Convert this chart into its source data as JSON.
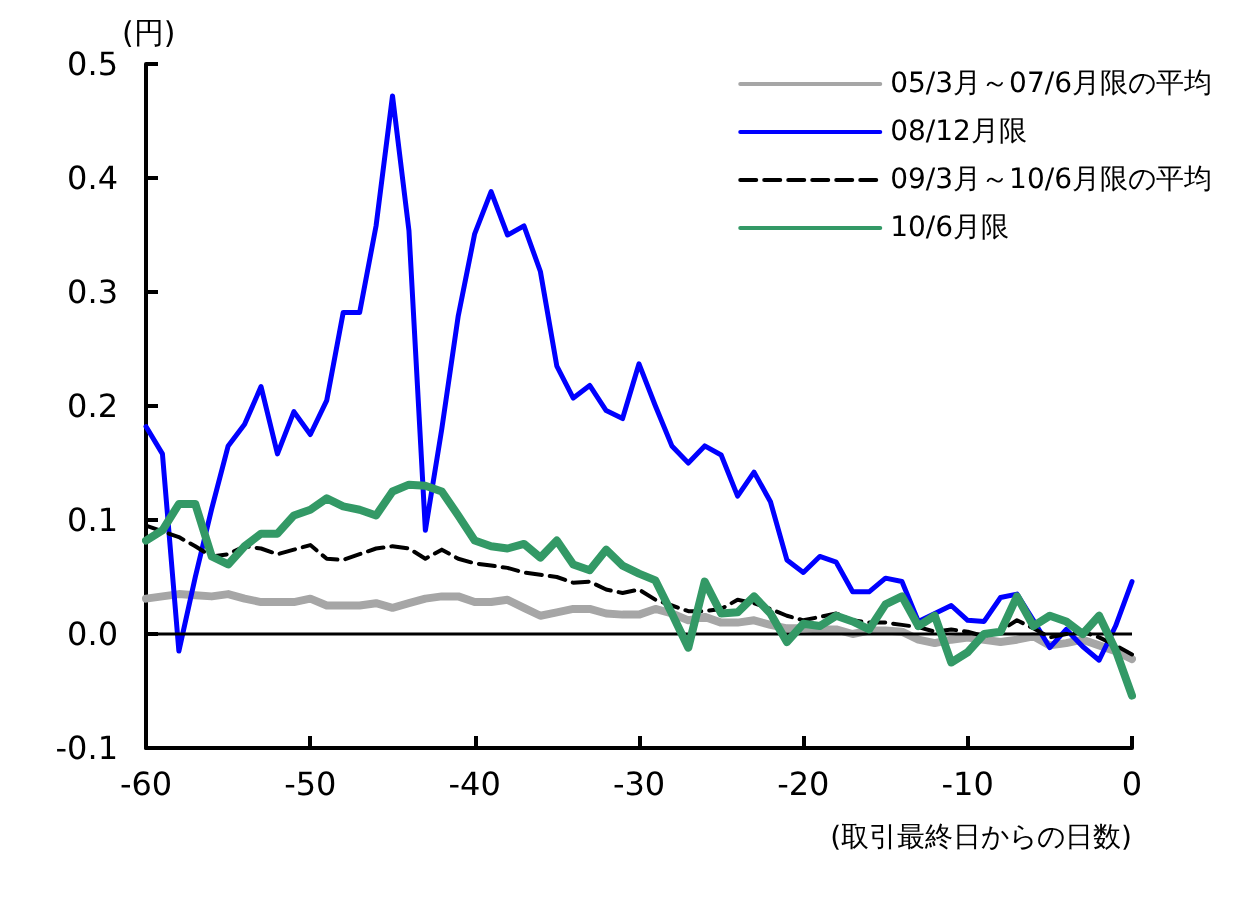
{
  "chart_data": {
    "type": "line",
    "ylabel": "(円)",
    "xlabel": "(取引最終日からの日数)",
    "x": [
      -60,
      -59,
      -58,
      -57,
      -56,
      -55,
      -54,
      -53,
      -52,
      -51,
      -50,
      -49,
      -48,
      -47,
      -46,
      -45,
      -44,
      -43,
      -42,
      -41,
      -40,
      -39,
      -38,
      -37,
      -36,
      -35,
      -34,
      -33,
      -32,
      -31,
      -30,
      -29,
      -28,
      -27,
      -26,
      -25,
      -24,
      -23,
      -22,
      -21,
      -20,
      -19,
      -18,
      -17,
      -16,
      -15,
      -14,
      -13,
      -12,
      -11,
      -10,
      -9,
      -8,
      -7,
      -6,
      -5,
      -4,
      -3,
      -2,
      -1,
      0
    ],
    "series": [
      {
        "name": "05/3月～07/6月限の平均",
        "color": "#a6a6a6",
        "line_style": "solid",
        "values": [
          0.031,
          0.033,
          0.035,
          0.034,
          0.033,
          0.035,
          0.031,
          0.028,
          0.028,
          0.028,
          0.031,
          0.025,
          0.025,
          0.025,
          0.027,
          0.023,
          0.027,
          0.031,
          0.033,
          0.033,
          0.028,
          0.028,
          0.03,
          0.023,
          0.016,
          0.019,
          0.022,
          0.022,
          0.018,
          0.017,
          0.017,
          0.022,
          0.018,
          0.012,
          0.015,
          0.01,
          0.01,
          0.012,
          0.008,
          0.005,
          0.005,
          0.004,
          0.004,
          0,
          0.003,
          0.003,
          0.002,
          -0.005,
          -0.008,
          -0.005,
          -0.003,
          -0.005,
          -0.007,
          -0.005,
          -0.002,
          -0.01,
          -0.008,
          -0.005,
          -0.01,
          -0.015,
          -0.022
        ]
      },
      {
        "name": "08/12月限",
        "color": "#0000ff",
        "line_style": "solid",
        "values": [
          0.182,
          0.158,
          -0.015,
          0.05,
          0.11,
          0.165,
          0.184,
          0.217,
          0.158,
          0.195,
          0.175,
          0.205,
          0.282,
          0.282,
          0.358,
          0.472,
          0.354,
          0.091,
          0.18,
          0.279,
          0.351,
          0.388,
          0.35,
          0.358,
          0.318,
          0.235,
          0.207,
          0.218,
          0.196,
          0.189,
          0.237,
          0.2,
          0.165,
          0.15,
          0.165,
          0.157,
          0.121,
          0.142,
          0.116,
          0.065,
          0.054,
          0.068,
          0.063,
          0.037,
          0.037,
          0.049,
          0.046,
          0.011,
          0.018,
          0.025,
          0.012,
          0.011,
          0.032,
          0.035,
          0.012,
          -0.012,
          0.004,
          -0.011,
          -0.023,
          0.007,
          0.046
        ]
      },
      {
        "name": "09/3月～10/6月限の平均",
        "color": "#000000",
        "line_style": "dashed",
        "values": [
          0.095,
          0.09,
          0.085,
          0.077,
          0.068,
          0.07,
          0.077,
          0.075,
          0.07,
          0.074,
          0.078,
          0.066,
          0.065,
          0.07,
          0.075,
          0.077,
          0.075,
          0.066,
          0.074,
          0.066,
          0.062,
          0.06,
          0.058,
          0.054,
          0.052,
          0.05,
          0.045,
          0.046,
          0.039,
          0.036,
          0.039,
          0.03,
          0.025,
          0.02,
          0.02,
          0.022,
          0.03,
          0.027,
          0.022,
          0.016,
          0.012,
          0.015,
          0.018,
          0.012,
          0.01,
          0.01,
          0.008,
          0.006,
          0.002,
          0.004,
          0.002,
          -0.002,
          0.003,
          0.012,
          0.005,
          -0.003,
          0,
          0.002,
          -0.003,
          -0.01,
          -0.018
        ]
      },
      {
        "name": "10/6月限",
        "color": "#339966",
        "line_style": "solid",
        "values": [
          0.082,
          0.091,
          0.114,
          0.114,
          0.068,
          0.061,
          0.077,
          0.088,
          0.088,
          0.104,
          0.109,
          0.119,
          0.112,
          0.109,
          0.104,
          0.125,
          0.131,
          0.13,
          0.125,
          0.104,
          0.082,
          0.077,
          0.075,
          0.079,
          0.067,
          0.082,
          0.061,
          0.056,
          0.074,
          0.06,
          0.053,
          0.047,
          0.018,
          -0.012,
          0.046,
          0.018,
          0.019,
          0.033,
          0.018,
          -0.007,
          0.009,
          0.007,
          0.016,
          0.011,
          0.004,
          0.026,
          0.033,
          0.007,
          0.016,
          -0.025,
          -0.016,
          0,
          0.002,
          0.033,
          0.007,
          0.016,
          0.011,
          0,
          0.016,
          -0.014,
          -0.054
        ]
      }
    ],
    "xlim": [
      -60,
      0
    ],
    "xticks": [
      -60,
      -50,
      -40,
      -30,
      -20,
      -10,
      0
    ],
    "ylim": [
      -0.1,
      0.5
    ],
    "yticks": [
      {
        "value": -0.1,
        "label": "-0.1"
      },
      {
        "value": 0,
        "label": "0.0"
      },
      {
        "value": 0.1,
        "label": "0.1"
      },
      {
        "value": 0.2,
        "label": "0.2"
      },
      {
        "value": 0.3,
        "label": "0.3"
      },
      {
        "value": 0.4,
        "label": "0.4"
      },
      {
        "value": 0.5,
        "label": "0.5"
      }
    ],
    "ref_lines": [
      {
        "axis": "y",
        "value": 0,
        "color": "#000000"
      }
    ],
    "grid": false,
    "legend": "top right",
    "marker": "none"
  }
}
